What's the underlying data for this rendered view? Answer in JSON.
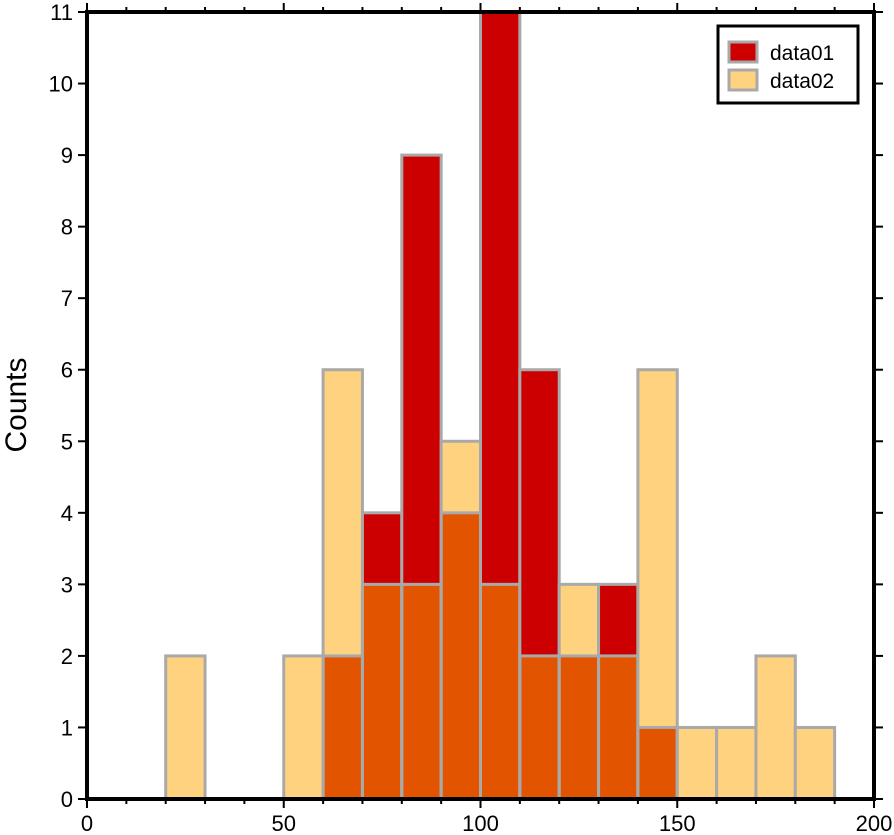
{
  "chart_data": {
    "type": "bar",
    "subtype": "overlapping-histogram",
    "xlabel": "",
    "ylabel": "Counts",
    "xlim": [
      0,
      200
    ],
    "ylim": [
      0,
      11
    ],
    "bin_width": 10,
    "bin_starts": [
      0,
      10,
      20,
      30,
      40,
      50,
      60,
      70,
      80,
      90,
      100,
      110,
      120,
      130,
      140,
      150,
      160,
      170,
      180,
      190
    ],
    "xticks": [
      0,
      50,
      100,
      150,
      200
    ],
    "yticks": [
      0,
      1,
      2,
      3,
      4,
      5,
      6,
      7,
      8,
      9,
      10,
      11
    ],
    "grid": false,
    "legend_position": "top-right",
    "series": [
      {
        "name": "data01",
        "color": "#cc0000",
        "values": [
          0,
          0,
          0,
          0,
          0,
          0,
          2,
          4,
          9,
          4,
          11,
          6,
          2,
          3,
          1,
          0,
          0,
          0,
          0,
          0
        ]
      },
      {
        "name": "data02",
        "color": "#ffd27f",
        "values": [
          0,
          0,
          2,
          0,
          0,
          2,
          6,
          3,
          3,
          5,
          3,
          2,
          3,
          2,
          6,
          1,
          1,
          2,
          1,
          0
        ]
      }
    ],
    "overlap_color": "#e35400",
    "bar_edge_color": "#a9a9a9"
  }
}
